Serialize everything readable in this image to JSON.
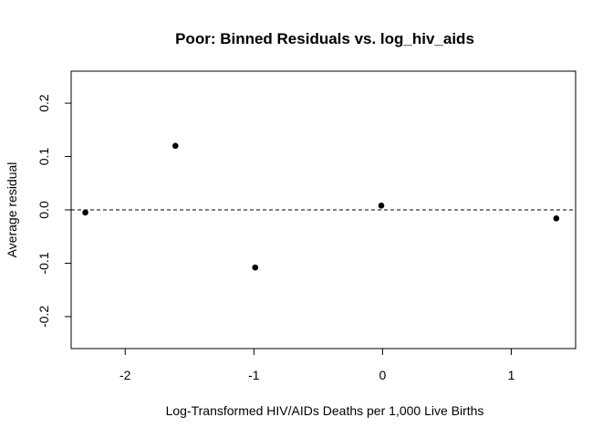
{
  "chart_data": {
    "type": "scatter",
    "title": "Poor: Binned Residuals vs. log_hiv_aids",
    "xlabel": "Log-Transformed HIV/AIDs Deaths per 1,000 Live Births",
    "ylabel": "Average residual",
    "xlim": [
      -2.42,
      1.5
    ],
    "ylim": [
      -0.26,
      0.26
    ],
    "x_ticks": [
      -2,
      -1,
      0,
      1
    ],
    "x_tick_labels": [
      "-2",
      "-1",
      "0",
      "1"
    ],
    "y_ticks": [
      -0.2,
      -0.1,
      0.0,
      0.1,
      0.2
    ],
    "y_tick_labels": [
      "-0.2",
      "-0.1",
      "0.0",
      "0.1",
      "0.2"
    ],
    "reference_line": {
      "y": 0,
      "style": "dashed"
    },
    "points": [
      {
        "x": -2.31,
        "y": -0.005
      },
      {
        "x": -1.61,
        "y": 0.12
      },
      {
        "x": -0.99,
        "y": -0.108
      },
      {
        "x": -0.01,
        "y": 0.008
      },
      {
        "x": 1.35,
        "y": -0.016
      }
    ],
    "grid": false,
    "point_color": "#000000"
  }
}
